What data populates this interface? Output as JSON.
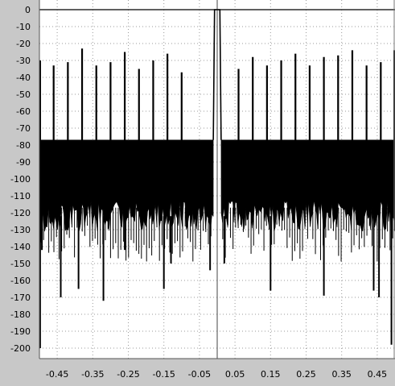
{
  "chart_data": {
    "type": "line",
    "title": "",
    "xlabel": "",
    "ylabel": "",
    "xlim": [
      -0.5,
      0.5
    ],
    "ylim": [
      -200,
      0
    ],
    "grid": true,
    "x_ticks": [
      -0.45,
      -0.35,
      -0.25,
      -0.15,
      -0.05,
      0.05,
      0.15,
      0.25,
      0.35,
      0.45
    ],
    "x_tick_labels": [
      "-0.45",
      "-0.35",
      "-0.25",
      "-0.15",
      "-0.05",
      "0.05",
      "0.15",
      "0.25",
      "0.35",
      "0.45"
    ],
    "y_ticks": [
      0,
      -10,
      -20,
      -30,
      -40,
      -50,
      -60,
      -70,
      -80,
      -90,
      -100,
      -110,
      -120,
      -130,
      -140,
      -150,
      -160,
      -170,
      -180,
      -190,
      -200
    ],
    "y_tick_labels": [
      "0",
      "-10",
      "-20",
      "-30",
      "-40",
      "-50",
      "-60",
      "-70",
      "-80",
      "-90",
      "-100",
      "-110",
      "-120",
      "-130",
      "-140",
      "-150",
      "-160",
      "-170",
      "-180",
      "-190",
      "-200"
    ],
    "series": [
      {
        "passband": {
          "x_start": -0.0075,
          "x_end": 0.0075,
          "y": 0
        },
        "transition_edges": [
          -0.011,
          0.011
        ],
        "stopband_floor": {
          "x_ranges": [
            [
              -0.5,
              -0.011
            ],
            [
              0.011,
              0.5
            ]
          ],
          "y_top": -77,
          "y_bottom_typical": -122
        },
        "spurs": [
          {
            "x": -0.498,
            "y": -30
          },
          {
            "x": -0.46,
            "y": -33
          },
          {
            "x": -0.42,
            "y": -31
          },
          {
            "x": -0.38,
            "y": -23
          },
          {
            "x": -0.34,
            "y": -33
          },
          {
            "x": -0.3,
            "y": -31
          },
          {
            "x": -0.26,
            "y": -25
          },
          {
            "x": -0.22,
            "y": -35
          },
          {
            "x": -0.18,
            "y": -30
          },
          {
            "x": -0.14,
            "y": -26
          },
          {
            "x": -0.1,
            "y": -37
          },
          {
            "x": 0.06,
            "y": -35
          },
          {
            "x": 0.1,
            "y": -28
          },
          {
            "x": 0.14,
            "y": -33
          },
          {
            "x": 0.18,
            "y": -30
          },
          {
            "x": 0.22,
            "y": -26
          },
          {
            "x": 0.26,
            "y": -33
          },
          {
            "x": 0.3,
            "y": -28
          },
          {
            "x": 0.34,
            "y": -27
          },
          {
            "x": 0.38,
            "y": -24
          },
          {
            "x": 0.42,
            "y": -33
          },
          {
            "x": 0.46,
            "y": -31
          },
          {
            "x": 0.498,
            "y": -24
          }
        ],
        "nulls": [
          {
            "x": -0.498,
            "y": -200
          },
          {
            "x": -0.493,
            "y": -142
          },
          {
            "x": -0.44,
            "y": -170
          },
          {
            "x": -0.39,
            "y": -165
          },
          {
            "x": -0.32,
            "y": -172
          },
          {
            "x": -0.26,
            "y": -142
          },
          {
            "x": -0.15,
            "y": -165
          },
          {
            "x": -0.13,
            "y": -150
          },
          {
            "x": -0.02,
            "y": -154
          },
          {
            "x": 0.02,
            "y": -150
          },
          {
            "x": 0.15,
            "y": -166
          },
          {
            "x": 0.3,
            "y": -169
          },
          {
            "x": 0.44,
            "y": -166
          },
          {
            "x": 0.455,
            "y": -170
          },
          {
            "x": 0.49,
            "y": -198
          }
        ],
        "color": "#000000"
      }
    ]
  }
}
